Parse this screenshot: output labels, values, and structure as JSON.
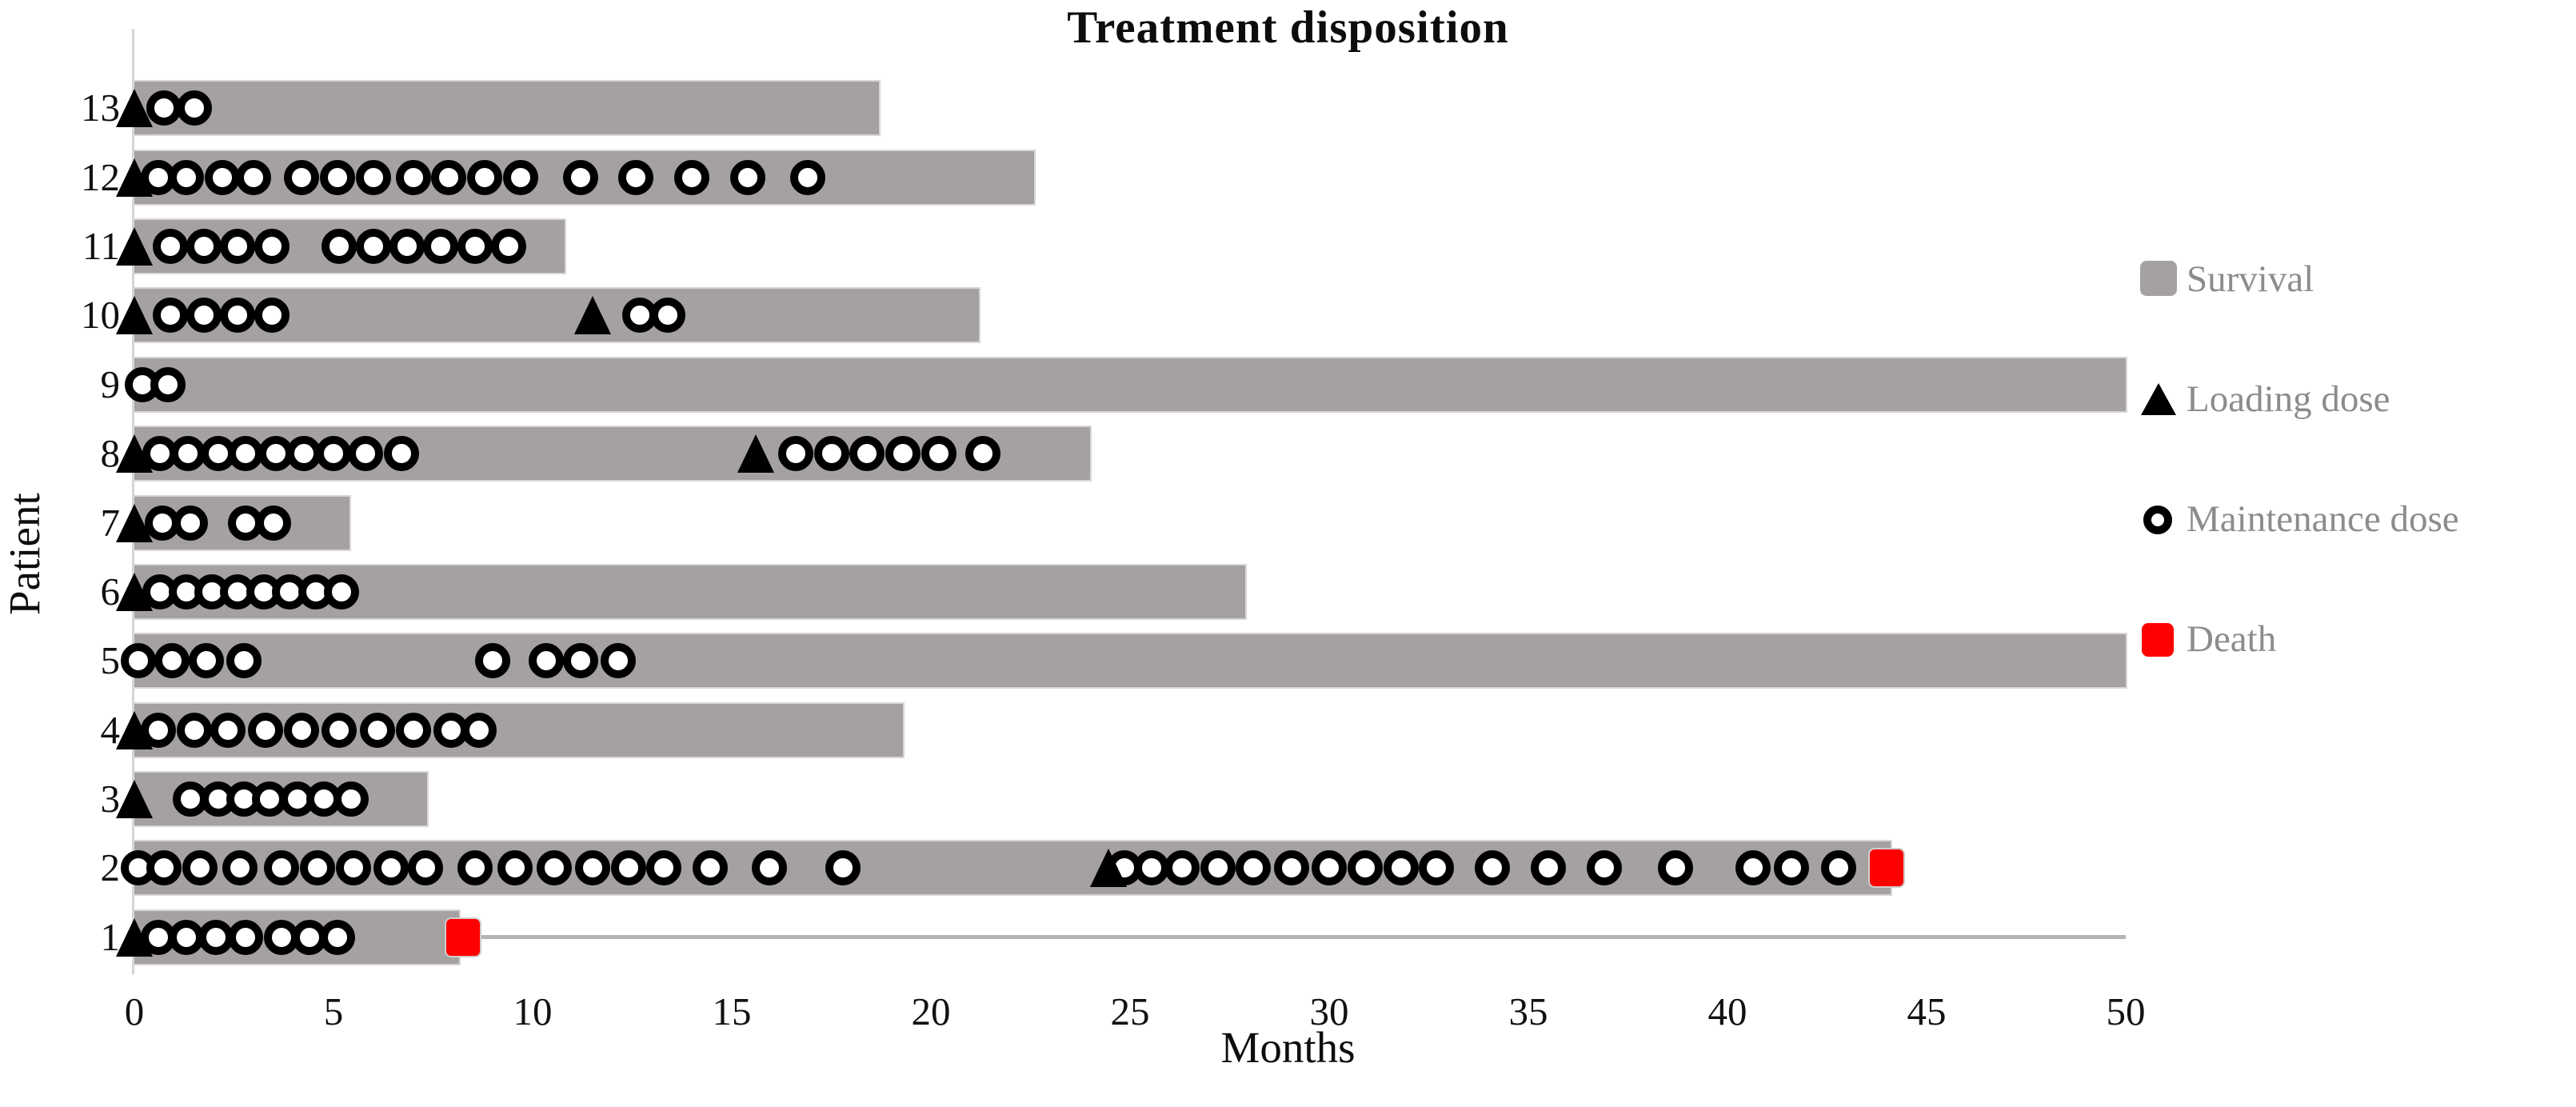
{
  "title": "Treatment disposition",
  "x_axis": {
    "label": "Months",
    "min": 0,
    "max": 50,
    "tick_step": 5,
    "ticks": [
      0,
      5,
      10,
      15,
      20,
      25,
      30,
      35,
      40,
      45,
      50
    ]
  },
  "y_axis": {
    "label": "Patient"
  },
  "legend": [
    {
      "label": "Survival",
      "marker": "bar",
      "color": "#a6a1a1"
    },
    {
      "label": "Loading dose",
      "marker": "triangle",
      "color": "#000000"
    },
    {
      "label": "Maintenance dose",
      "marker": "open-circle",
      "color": "#000000"
    },
    {
      "label": "Death",
      "marker": "square",
      "color": "#fe0000"
    }
  ],
  "colors": {
    "survival_bar": "#a6a1a1",
    "loading_dose": "#000000",
    "maintenance_dose_ring": "#000000",
    "death": "#fe0000",
    "legend_text": "#8c8c8c",
    "axis_line": "#d7d4d4",
    "baseline": "#b7b3b3"
  },
  "chart_data": {
    "type": "bar",
    "orientation": "horizontal",
    "title": "Treatment disposition",
    "xlabel": "Months",
    "ylabel": "Patient",
    "xlim": [
      0,
      50
    ],
    "xticks": [
      0,
      5,
      10,
      15,
      20,
      25,
      30,
      35,
      40,
      45,
      50
    ],
    "grid": false,
    "legend_position": "right",
    "categories": [
      13,
      12,
      11,
      10,
      9,
      8,
      7,
      6,
      5,
      4,
      3,
      2,
      1
    ],
    "series": [
      {
        "name": "Survival (months)",
        "values": [
          18.7,
          22.6,
          10.8,
          21.2,
          50,
          24.0,
          5.4,
          27.9,
          50,
          19.3,
          7.35,
          44.1,
          8.15
        ]
      }
    ],
    "patients": [
      {
        "patient": 13,
        "survival": 18.7,
        "loading_dose": [
          0
        ],
        "death": [],
        "maintenance_dose": [
          0.75,
          1.5
        ]
      },
      {
        "patient": 12,
        "survival": 22.6,
        "loading_dose": [
          0
        ],
        "death": [],
        "maintenance_dose": [
          0.6,
          1.3,
          2.2,
          3.0,
          4.2,
          5.1,
          6.0,
          7.0,
          7.9,
          8.8,
          9.7,
          11.2,
          12.6,
          14.0,
          15.4,
          16.9
        ]
      },
      {
        "patient": 11,
        "survival": 10.8,
        "loading_dose": [
          0
        ],
        "death": [],
        "maintenance_dose": [
          0.9,
          1.75,
          2.6,
          3.45,
          5.15,
          6.0,
          6.85,
          7.7,
          8.55,
          9.4
        ]
      },
      {
        "patient": 10,
        "survival": 21.2,
        "loading_dose": [
          0,
          11.5
        ],
        "death": [],
        "maintenance_dose": [
          0.9,
          1.75,
          2.6,
          3.45,
          12.7,
          13.4
        ]
      },
      {
        "patient": 9,
        "survival": 50,
        "loading_dose": [],
        "death": [],
        "maintenance_dose": [
          0.2,
          0.85
        ]
      },
      {
        "patient": 8,
        "survival": 24.0,
        "loading_dose": [
          0,
          15.6
        ],
        "death": [],
        "maintenance_dose": [
          0.65,
          1.35,
          2.1,
          2.8,
          3.55,
          4.25,
          5.0,
          5.8,
          6.7,
          16.6,
          17.5,
          18.4,
          19.3,
          20.2,
          21.3
        ]
      },
      {
        "patient": 7,
        "survival": 5.4,
        "loading_dose": [
          0
        ],
        "death": [],
        "maintenance_dose": [
          0.7,
          1.4,
          2.8,
          3.5
        ]
      },
      {
        "patient": 6,
        "survival": 27.9,
        "loading_dose": [
          0
        ],
        "death": [],
        "maintenance_dose": [
          0.65,
          1.3,
          1.95,
          2.6,
          3.25,
          3.9,
          4.55,
          5.2
        ]
      },
      {
        "patient": 5,
        "survival": 50,
        "loading_dose": [],
        "death": [],
        "maintenance_dose": [
          0.1,
          0.95,
          1.8,
          2.75,
          9.0,
          10.35,
          11.2,
          12.15
        ]
      },
      {
        "patient": 4,
        "survival": 19.3,
        "loading_dose": [
          0
        ],
        "death": [],
        "maintenance_dose": [
          0.6,
          1.5,
          2.35,
          3.3,
          4.2,
          5.15,
          6.1,
          7.0,
          7.95,
          8.65
        ]
      },
      {
        "patient": 3,
        "survival": 7.35,
        "loading_dose": [
          0
        ],
        "death": [],
        "maintenance_dose": [
          1.4,
          2.1,
          2.75,
          3.4,
          4.1,
          4.75,
          5.45
        ]
      },
      {
        "patient": 2,
        "survival": 44.1,
        "loading_dose": [
          24.45
        ],
        "death": [
          44.0
        ],
        "maintenance_dose": [
          0.1,
          0.75,
          1.65,
          2.65,
          3.7,
          4.6,
          5.5,
          6.45,
          7.3,
          8.55,
          9.55,
          10.55,
          11.5,
          12.4,
          13.3,
          14.45,
          15.95,
          17.8,
          24.85,
          25.55,
          26.3,
          27.2,
          28.1,
          29.05,
          30.0,
          30.9,
          31.8,
          32.7,
          34.1,
          35.5,
          36.9,
          38.7,
          40.65,
          41.6,
          42.8
        ]
      },
      {
        "patient": 1,
        "survival": 8.15,
        "loading_dose": [
          0
        ],
        "death": [
          8.25
        ],
        "maintenance_dose": [
          0.6,
          1.3,
          2.05,
          2.8,
          3.7,
          4.4,
          5.1
        ]
      }
    ]
  }
}
